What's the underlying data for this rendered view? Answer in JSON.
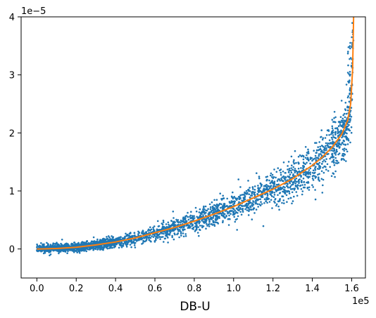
{
  "chart_data": {
    "type": "scatter",
    "title": "",
    "xlabel": "DB-U",
    "ylabel": "",
    "x_offset_text": "1e5",
    "y_offset_text": "1e−5",
    "x_multiplier": 100000,
    "y_multiplier": 1e-05,
    "xlim": [
      -8000,
      167000
    ],
    "ylim": [
      -5e-06,
      4e-05
    ],
    "x_ticks": [
      0,
      20000,
      40000,
      60000,
      80000,
      100000,
      120000,
      140000,
      160000
    ],
    "x_tick_labels": [
      "0.0",
      "0.2",
      "0.4",
      "0.6",
      "0.8",
      "1.0",
      "1.2",
      "1.4",
      "1.6"
    ],
    "y_ticks": [
      0,
      1e-05,
      2e-05,
      3e-05,
      4e-05
    ],
    "y_tick_labels": [
      "0",
      "1",
      "2",
      "3",
      "4"
    ],
    "grid": false,
    "legend": "none",
    "colors": {
      "scatter": "#1f77b4",
      "curve": "#ff7f0e"
    },
    "series": [
      {
        "type": "scatter",
        "color": "#1f77b4",
        "x_range": [
          0,
          161000
        ],
        "y_range": [
          -5e-07,
          4e-05
        ],
        "description_points": [
          [
            0,
            0
          ],
          [
            20000,
            5e-07
          ],
          [
            40000,
            1.5e-06
          ],
          [
            60000,
            3e-06
          ],
          [
            80000,
            4.8e-06
          ],
          [
            100000,
            7.2e-06
          ],
          [
            120000,
            1.01e-05
          ],
          [
            140000,
            1.45e-05
          ],
          [
            155000,
            1.95e-05
          ],
          [
            160000,
            2.4e-05
          ],
          [
            161000,
            4e-05
          ]
        ]
      },
      {
        "type": "line",
        "color": "#ff7f0e",
        "x": [
          0,
          10000,
          20000,
          30000,
          40000,
          50000,
          60000,
          70000,
          80000,
          90000,
          100000,
          110000,
          120000,
          130000,
          140000,
          145000,
          150000,
          155000,
          158000,
          159500,
          160500,
          161000
        ],
        "y": [
          0,
          8e-08,
          3e-07,
          7e-07,
          1.2e-06,
          1.9e-06,
          2.8e-06,
          3.7e-06,
          4.8e-06,
          6e-06,
          7.3e-06,
          8.8e-06,
          1.03e-05,
          1.21e-05,
          1.44e-05,
          1.58e-05,
          1.75e-05,
          1.98e-05,
          2.22e-05,
          2.5e-05,
          3.1e-05,
          4e-05
        ]
      }
    ]
  }
}
